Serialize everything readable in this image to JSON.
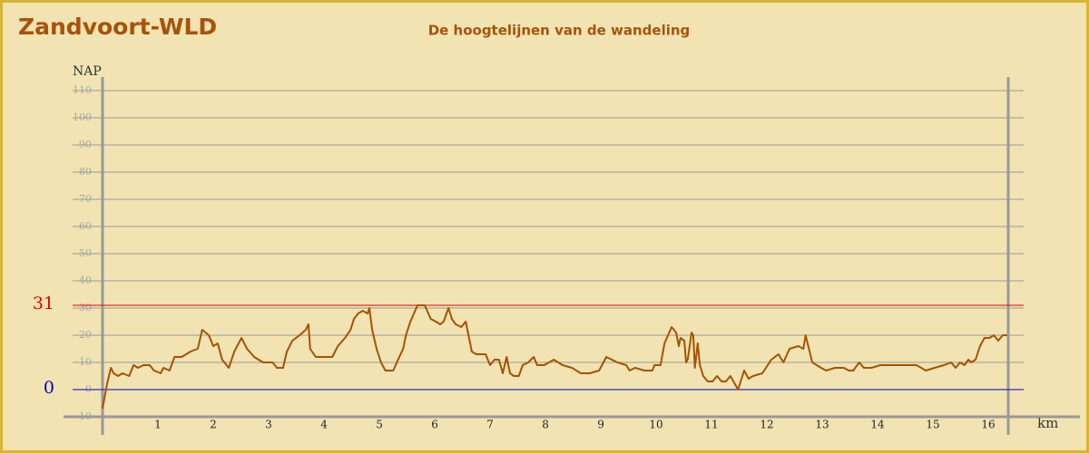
{
  "chart_data": {
    "type": "line",
    "title": "Zandvoort-WLD",
    "subtitle": "De hoogtelijnen van de wandeling",
    "y_label": "NAP",
    "x_label": "km",
    "color": "#a65200",
    "xlim": [
      0,
      16.36
    ],
    "xticks": [
      1,
      2,
      3,
      4,
      5,
      6,
      7,
      8,
      9,
      10,
      11,
      12,
      13,
      14,
      15,
      16
    ],
    "ylim": [
      -10,
      110
    ],
    "yticks": [
      -10,
      0,
      10,
      20,
      30,
      40,
      50,
      60,
      70,
      80,
      90,
      100,
      110
    ],
    "grid": true,
    "reference_lines": [
      {
        "value": 31,
        "color": "#e00000"
      },
      {
        "value": 0,
        "color": "#0000cc"
      }
    ],
    "x": [
      0,
      0.08,
      0.15,
      0.2,
      0.28,
      0.36,
      0.48,
      0.56,
      0.64,
      0.74,
      0.85,
      0.93,
      1.05,
      1.1,
      1.21,
      1.3,
      1.43,
      1.59,
      1.72,
      1.8,
      1.92,
      2,
      2.08,
      2.16,
      2.28,
      2.38,
      2.51,
      2.61,
      2.74,
      2.9,
      3.07,
      3.15,
      3.26,
      3.33,
      3.43,
      3.56,
      3.67,
      3.72,
      3.75,
      3.85,
      4.02,
      4.15,
      4.25,
      4.38,
      4.48,
      4.54,
      4.62,
      4.7,
      4.79,
      4.82,
      4.87,
      4.95,
      5.03,
      5.11,
      5.25,
      5.36,
      5.43,
      5.48,
      5.56,
      5.69,
      5.82,
      5.93,
      6.02,
      6.1,
      6.16,
      6.25,
      6.31,
      6.38,
      6.48,
      6.56,
      6.59,
      6.67,
      6.75,
      6.92,
      7,
      7.08,
      7.16,
      7.23,
      7.3,
      7.36,
      7.43,
      7.52,
      7.59,
      7.69,
      7.79,
      7.85,
      7.98,
      8.15,
      8.31,
      8.48,
      8.64,
      8.8,
      8.97,
      9.1,
      9.3,
      9.46,
      9.52,
      9.62,
      9.79,
      9.93,
      9.97,
      10.08,
      10.15,
      10.28,
      10.36,
      10.41,
      10.44,
      10.51,
      10.54,
      10.57,
      10.64,
      10.67,
      10.7,
      10.75,
      10.79,
      10.85,
      10.93,
      11.02,
      11.1,
      11.18,
      11.26,
      11.34,
      11.48,
      11.59,
      11.67,
      11.75,
      11.92,
      12.08,
      12.21,
      12.3,
      12.41,
      12.57,
      12.66,
      12.7,
      12.82,
      12.98,
      13.07,
      13.23,
      13.39,
      13.48,
      13.56,
      13.67,
      13.75,
      13.89,
      14.05,
      14.7,
      14.79,
      14.87,
      15.03,
      15.2,
      15.33,
      15.41,
      15.49,
      15.57,
      15.64,
      15.69,
      15.77,
      15.85,
      15.93,
      16.02,
      16.1,
      16.18,
      16.26,
      16.34
    ],
    "values": [
      -7,
      2,
      8,
      6,
      5,
      6,
      5,
      9,
      8,
      9,
      9,
      7,
      6,
      8,
      7,
      12,
      12,
      14,
      15,
      22,
      20,
      16,
      17,
      11,
      8,
      14,
      19,
      15,
      12,
      10,
      10,
      8,
      8,
      14,
      18,
      20,
      22,
      24,
      15,
      12,
      12,
      12,
      16,
      19,
      22,
      26,
      28,
      29,
      28,
      30,
      22,
      15,
      10,
      7,
      7,
      12,
      15,
      20,
      25,
      31,
      31,
      26,
      25,
      24,
      25,
      30,
      26,
      24,
      23,
      25,
      22,
      14,
      13,
      13,
      9,
      11,
      11,
      6,
      12,
      6,
      5,
      5,
      9,
      10,
      12,
      9,
      9,
      11,
      9,
      8,
      6,
      6,
      7,
      12,
      10,
      9,
      7,
      8,
      7,
      7,
      9,
      9,
      17,
      23,
      21,
      16,
      19,
      18,
      10,
      11,
      21,
      20,
      8,
      17,
      9,
      5,
      3,
      3,
      5,
      3,
      3,
      5,
      0,
      7,
      4,
      5,
      6,
      11,
      13,
      10,
      15,
      16,
      15,
      20,
      10,
      8,
      7,
      8,
      8,
      7,
      7,
      10,
      8,
      8,
      9,
      9,
      8,
      7,
      8,
      9,
      10,
      8,
      10,
      9,
      11,
      10,
      11,
      16,
      19,
      19,
      20,
      18,
      20,
      20
    ]
  }
}
